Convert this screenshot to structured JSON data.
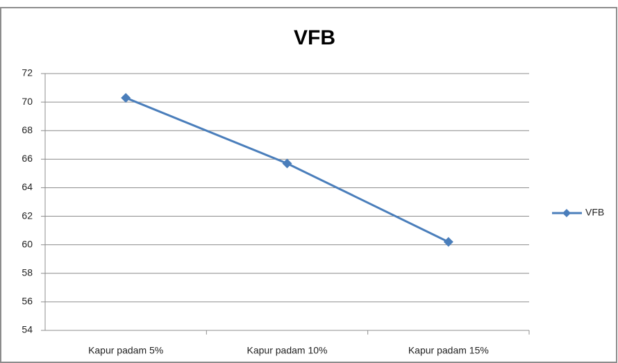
{
  "chart_data": {
    "type": "line",
    "title": "VFB",
    "categories": [
      "Kapur padam 5%",
      "Kapur padam 10%",
      "Kapur padam 15%"
    ],
    "series": [
      {
        "name": "VFB",
        "color": "#4a7ebb",
        "values": [
          70.3,
          65.7,
          60.2
        ]
      }
    ],
    "ylim": [
      54,
      72
    ],
    "yticks": [
      54,
      56,
      58,
      60,
      62,
      64,
      66,
      68,
      70,
      72
    ],
    "grid": true,
    "legend": "right"
  }
}
